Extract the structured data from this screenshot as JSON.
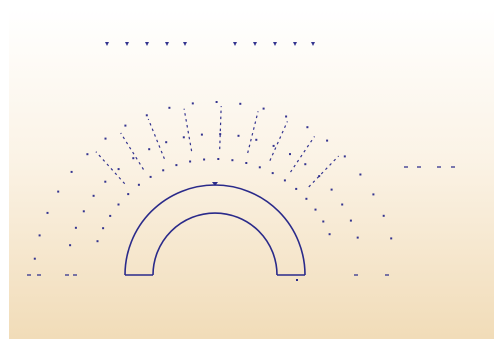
{
  "colors": {
    "stroke": "#2a2a8a",
    "dot": "#34348f",
    "background_top": "#ffffff",
    "background_bottom": "#f1dcb8"
  },
  "labels": {
    "right_annotation": "",
    "bottom_caption": ""
  }
}
